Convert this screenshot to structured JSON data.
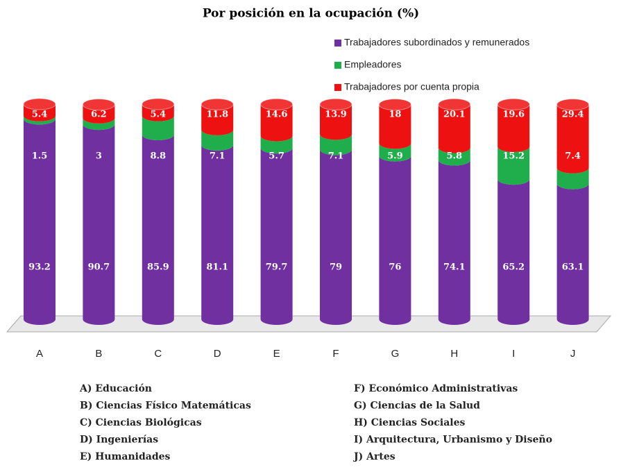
{
  "chart_data": {
    "type": "stacked-cylinder",
    "title": "Por posición en la ocupación (%)",
    "categories": [
      "A",
      "B",
      "C",
      "D",
      "E",
      "F",
      "G",
      "H",
      "I",
      "J"
    ],
    "series": [
      {
        "name": "Trabajadores subordinados y remunerados",
        "color": "#7030a0",
        "values": [
          93.2,
          90.7,
          85.9,
          81.1,
          79.7,
          79,
          76,
          74.1,
          65.2,
          63.1
        ]
      },
      {
        "name": "Empleadores",
        "color": "#1fae4b",
        "values": [
          1.5,
          3,
          8.8,
          7.1,
          5.7,
          7.1,
          5.9,
          5.8,
          15.2,
          7.4
        ]
      },
      {
        "name": "Trabajadores por cuenta propia",
        "color": "#ee1111",
        "values": [
          5.4,
          6.2,
          5.4,
          11.8,
          14.6,
          13.9,
          18,
          20.1,
          19.6,
          29.4
        ]
      }
    ],
    "category_descriptions": [
      "A) Educación",
      "B) Ciencias Físico Matemáticas",
      "C) Ciencias Biológicas",
      "D) Ingenierías",
      "E) Humanidades",
      "F) Económico Administrativas",
      "G) Ciencias de la Salud",
      "H) Ciencias Sociales",
      "I) Arquitectura, Urbanismo y Diseño",
      "J) Artes"
    ]
  }
}
